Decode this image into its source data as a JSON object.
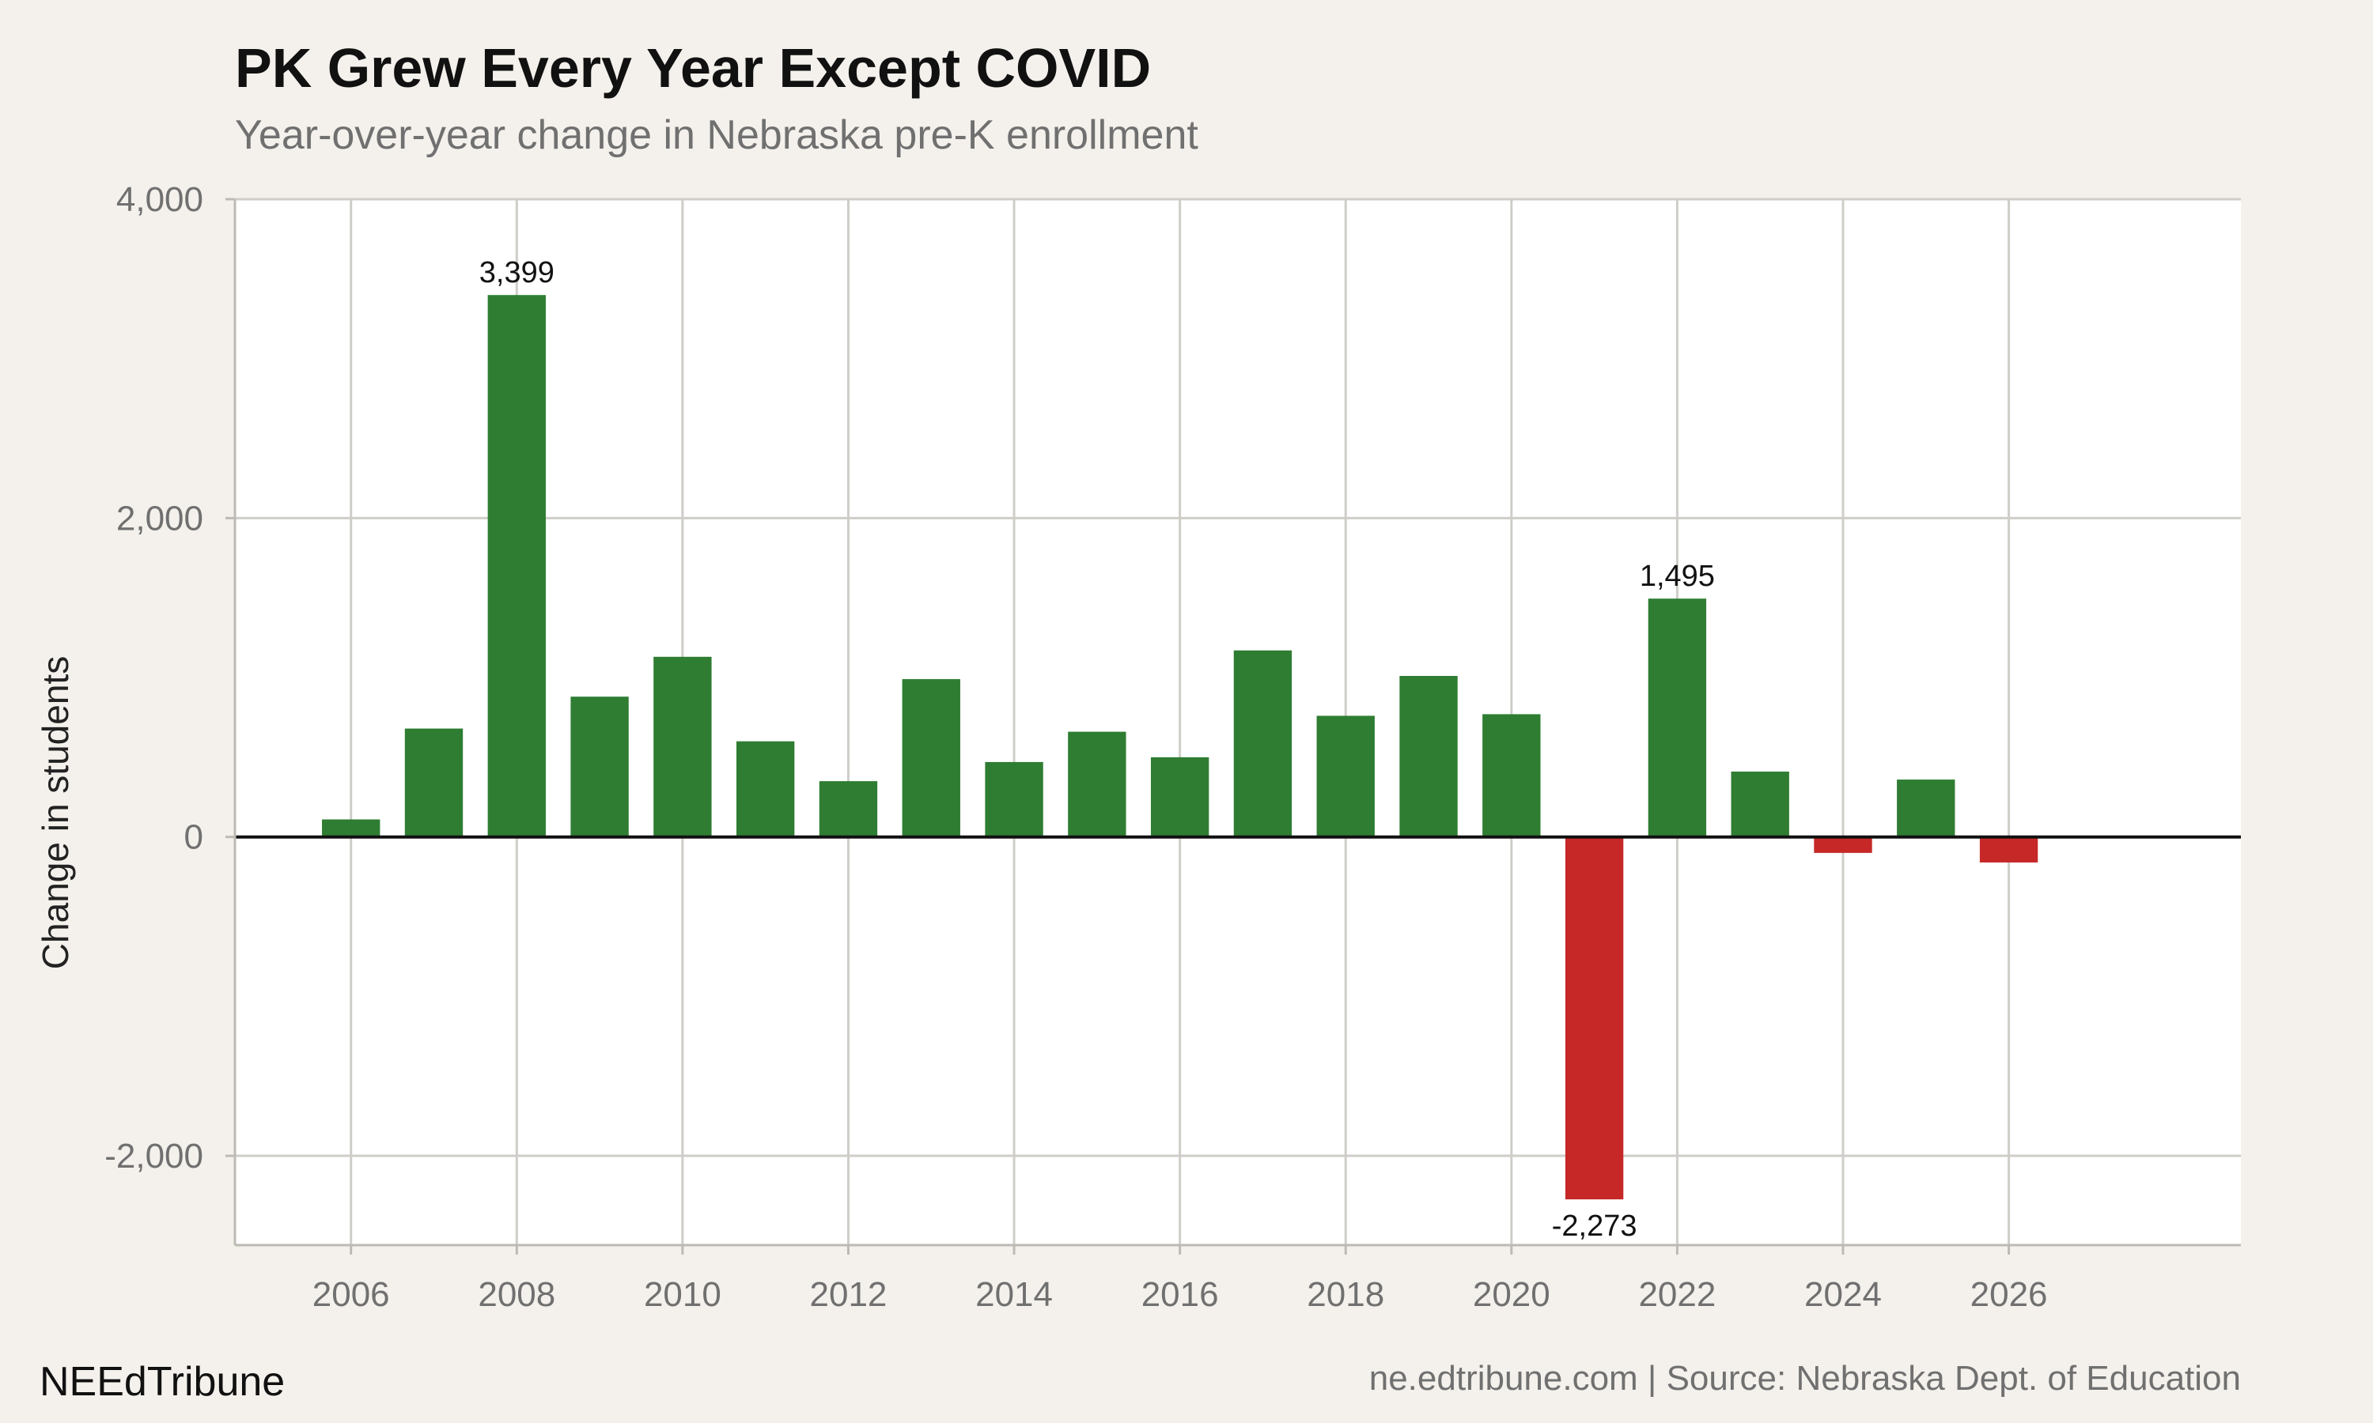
{
  "chart_data": {
    "type": "bar",
    "title": "PK Grew Every Year Except COVID",
    "subtitle": "Year-over-year change in Nebraska pre-K enrollment",
    "xlabel": "",
    "ylabel": "Change in students",
    "x": [
      2006,
      2007,
      2008,
      2009,
      2010,
      2011,
      2012,
      2013,
      2014,
      2015,
      2016,
      2017,
      2018,
      2019,
      2020,
      2021,
      2022,
      2023,
      2024,
      2025,
      2026
    ],
    "values": [
      110,
      680,
      3399,
      880,
      1130,
      600,
      350,
      990,
      470,
      660,
      500,
      1170,
      760,
      1010,
      770,
      -2273,
      1495,
      410,
      -100,
      360,
      -160
    ],
    "xlim": [
      2004.6,
      2028.8
    ],
    "ylim": [
      -2560,
      4000
    ],
    "xticks": [
      2006,
      2008,
      2010,
      2012,
      2014,
      2016,
      2018,
      2020,
      2022,
      2024,
      2026
    ],
    "xtick_labels": [
      "2006",
      "2008",
      "2010",
      "2012",
      "2014",
      "2016",
      "2018",
      "2020",
      "2022",
      "2024",
      "2026"
    ],
    "yticks": [
      -2000,
      0,
      2000,
      4000
    ],
    "ytick_labels": [
      "-2,000",
      "0",
      "2,000",
      "4,000"
    ],
    "annotations": [
      {
        "year": 2008,
        "value": 3399,
        "text": "3,399"
      },
      {
        "year": 2021,
        "value": -2273,
        "text": "-2,273"
      },
      {
        "year": 2022,
        "value": 1495,
        "text": "1,495"
      }
    ],
    "colors": {
      "positive": "#2e7d32",
      "negative": "#c62828",
      "zero_line": "#111111",
      "panel": "#ffffff"
    },
    "grid": true
  },
  "footer": {
    "brand": "NEEdTribune",
    "source": "ne.edtribune.com | Source: Nebraska Dept. of Education"
  }
}
